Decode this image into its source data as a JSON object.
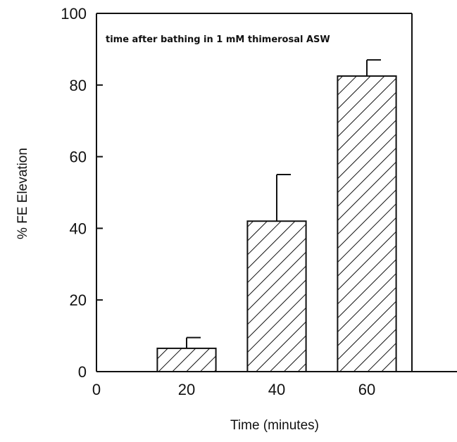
{
  "chart_data": {
    "type": "bar",
    "categories": [
      20,
      40,
      60
    ],
    "values": [
      6.5,
      42,
      82.5
    ],
    "error_upper": [
      9.5,
      55,
      87
    ],
    "xlabel": "Time (minutes)",
    "ylabel": "% FE Elevation",
    "annotation": "time after bathing in 1 mM thimerosal ASW",
    "xlim": [
      0,
      80
    ],
    "ylim": [
      0,
      100
    ],
    "xticks": [
      0,
      20,
      40,
      60
    ],
    "yticks": [
      0,
      20,
      40,
      60,
      80,
      100
    ],
    "bar_width": 13,
    "bar_fill": "diagonal-hatch",
    "grid": false,
    "legend": "none"
  }
}
